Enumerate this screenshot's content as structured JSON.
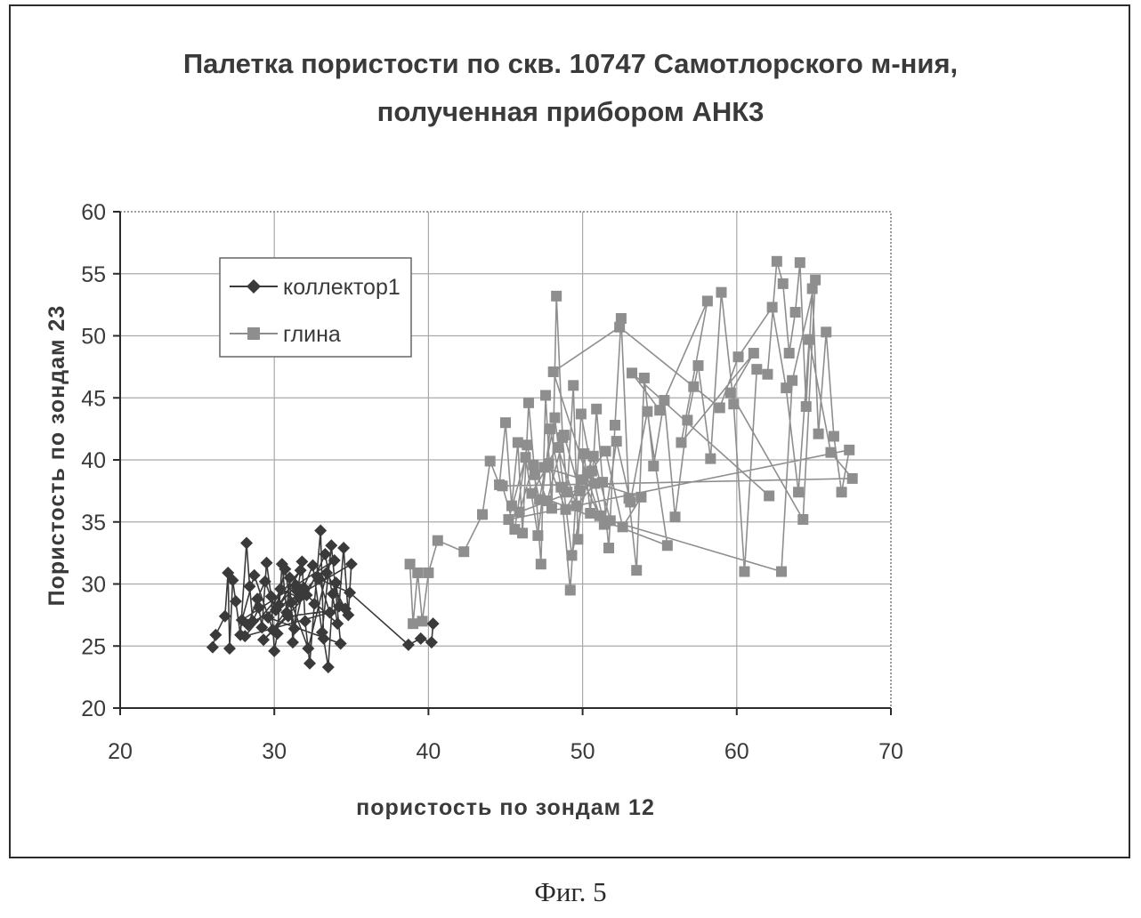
{
  "caption": "Фиг. 5",
  "chart_data": {
    "type": "scatter",
    "title": "Палетка пористости по скв. 10747 Самотлорского м-ния, полученная прибором АНК3",
    "title_lines": [
      "Палетка пористости по скв. 10747 Самотлорского м-ния,",
      "полученная прибором АНК3"
    ],
    "xlabel": "пористость по зондам 12",
    "ylabel": "Пористость по зондам 23",
    "xlim": [
      20,
      70
    ],
    "ylim": [
      20,
      60
    ],
    "xticks": [
      20,
      30,
      40,
      50,
      60,
      70
    ],
    "yticks": [
      20,
      25,
      30,
      35,
      40,
      45,
      50,
      55,
      60
    ],
    "grid": true,
    "legend_position": "top-left",
    "series": [
      {
        "name": "коллектор1",
        "marker": "diamond",
        "color": "#3a3a3a",
        "x": [
          26.0,
          26.2,
          26.8,
          27.0,
          27.1,
          27.3,
          27.5,
          27.8,
          28.2,
          28.4,
          28.6,
          29.0,
          29.2,
          29.5,
          29.8,
          30.0,
          30.2,
          30.5,
          30.8,
          31.0,
          31.2,
          31.5,
          31.8,
          32.0,
          32.3,
          32.6,
          33.0,
          33.2,
          33.5,
          33.8,
          34.0,
          34.2,
          34.5,
          34.8,
          35.0,
          28.3,
          28.9,
          29.4,
          30.1,
          30.7,
          31.3,
          31.9,
          32.5,
          33.1,
          33.7,
          34.3,
          29.6,
          30.4,
          31.6,
          32.8,
          33.9,
          27.9,
          28.7,
          29.9,
          31.1,
          32.2,
          33.4,
          34.6,
          30.9,
          29.3,
          32.1,
          33.3,
          34.1,
          31.4,
          30.3,
          31.7,
          28.1,
          33.6,
          32.9,
          34.9,
          38.7,
          39.5,
          40.2,
          40.3
        ],
        "y": [
          24.9,
          25.9,
          27.4,
          30.9,
          24.8,
          30.3,
          28.6,
          25.9,
          33.3,
          29.8,
          27.0,
          28.1,
          26.5,
          31.7,
          29.0,
          24.6,
          26.0,
          31.6,
          27.7,
          30.5,
          25.3,
          29.4,
          31.8,
          27.0,
          23.6,
          28.4,
          34.3,
          25.6,
          23.3,
          29.2,
          30.1,
          28.2,
          32.9,
          27.5,
          31.6,
          26.7,
          28.8,
          30.2,
          27.9,
          31.2,
          26.4,
          29.7,
          31.5,
          26.1,
          33.1,
          25.2,
          27.3,
          29.6,
          28.9,
          30.6,
          31.9,
          27.1,
          30.7,
          26.3,
          28.5,
          24.8,
          30.9,
          28.0,
          27.4,
          25.5,
          29.1,
          32.4,
          26.8,
          29.9,
          28.3,
          31.1,
          25.8,
          27.7,
          30.4,
          29.3,
          25.1,
          25.6,
          25.3,
          26.8
        ]
      },
      {
        "name": "глина",
        "marker": "square",
        "color": "#8e8e8e",
        "x": [
          38.8,
          39.0,
          39.3,
          39.6,
          40.0,
          40.6,
          42.3,
          43.5,
          44.0,
          44.6,
          45.0,
          45.4,
          45.8,
          46.1,
          46.5,
          46.9,
          47.3,
          47.6,
          48.0,
          48.3,
          48.7,
          49.0,
          49.4,
          49.7,
          50.1,
          50.5,
          50.9,
          51.3,
          51.7,
          52.1,
          52.5,
          53.0,
          53.5,
          54.0,
          54.6,
          55.3,
          56.0,
          56.8,
          57.5,
          58.3,
          59.0,
          59.8,
          60.5,
          61.3,
          62.0,
          62.6,
          63.0,
          63.4,
          63.8,
          64.1,
          64.5,
          64.9,
          65.3,
          65.8,
          66.3,
          66.8,
          67.3,
          45.2,
          46.3,
          47.1,
          47.9,
          48.6,
          49.2,
          49.9,
          50.6,
          51.4,
          52.2,
          53.1,
          54.2,
          55.5,
          46.7,
          47.8,
          48.9,
          50.0,
          51.1,
          48.1,
          52.4,
          57.2,
          58.9,
          60.1,
          62.3,
          63.2,
          64.0,
          64.7,
          66.1,
          67.5,
          44.8,
          45.6,
          46.4,
          47.2,
          48.2,
          49.3,
          50.4,
          51.5,
          52.6,
          53.8,
          47.5,
          48.4,
          49.6,
          50.8,
          45.9,
          46.8,
          47.7,
          48.8,
          49.8,
          50.7,
          51.8,
          62.9,
          63.6,
          65.1,
          64.3,
          59.6,
          61.1,
          56.4,
          58.1,
          55.0,
          53.2,
          62.1
        ],
        "y": [
          31.6,
          26.8,
          30.9,
          27.0,
          30.9,
          33.5,
          32.6,
          35.6,
          39.9,
          38.0,
          43.0,
          36.3,
          41.4,
          34.1,
          44.6,
          38.8,
          31.6,
          45.2,
          36.1,
          53.2,
          41.8,
          37.4,
          46.0,
          33.6,
          40.5,
          35.7,
          44.1,
          38.2,
          32.9,
          42.8,
          51.4,
          36.9,
          31.1,
          46.6,
          39.5,
          44.8,
          35.4,
          43.2,
          47.6,
          40.1,
          53.5,
          44.5,
          31.0,
          47.3,
          46.9,
          56.0,
          54.2,
          48.6,
          51.9,
          55.9,
          44.3,
          53.8,
          42.1,
          50.3,
          41.9,
          37.4,
          40.8,
          35.2,
          40.2,
          33.9,
          42.5,
          37.8,
          29.5,
          43.7,
          39.1,
          34.8,
          41.5,
          36.6,
          43.9,
          33.1,
          37.3,
          39.7,
          36.0,
          38.4,
          35.5,
          47.1,
          50.7,
          45.9,
          44.2,
          48.3,
          52.3,
          45.8,
          37.4,
          49.7,
          40.6,
          38.5,
          37.9,
          34.4,
          41.2,
          36.8,
          43.4,
          32.3,
          38.9,
          40.7,
          34.6,
          37.0,
          39.4,
          41.0,
          36.3,
          38.1,
          35.8,
          39.6,
          36.7,
          42.0,
          37.5,
          40.3,
          35.1,
          31.0,
          46.4,
          54.5,
          35.2,
          45.4,
          48.6,
          41.4,
          52.8,
          44.0,
          47.0,
          37.1
        ]
      }
    ]
  }
}
